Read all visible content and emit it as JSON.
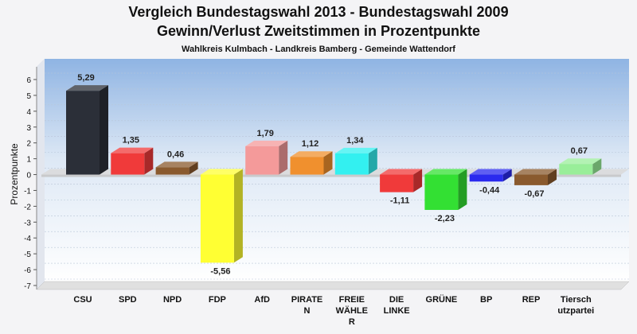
{
  "chart_data": {
    "type": "bar",
    "title": "Vergleich Bundestagswahl 2013 - Bundestagswahl 2009",
    "title2": "Gewinn/Verlust Zweitstimmen in Prozentpunkte",
    "subtitle": "Wahlkreis Kulmbach - Landkreis Bamberg - Gemeinde Wattendorf",
    "ylabel": "Prozentpunkte",
    "xlabel": "",
    "ylim": [
      -7,
      6
    ],
    "yticks": [
      6,
      5,
      4,
      3,
      2,
      1,
      0,
      -1,
      -2,
      -3,
      -4,
      -5,
      -6,
      -7
    ],
    "grid": true,
    "categories": [
      "CSU",
      "SPD",
      "NPD",
      "FDP",
      "AfD",
      "PIRATE N",
      "FREIE WÄHLE R",
      "DIE LINKE",
      "GRÜNE",
      "BP",
      "REP",
      "Tiersch utzpartei"
    ],
    "category_lines": [
      [
        "CSU"
      ],
      [
        "SPD"
      ],
      [
        "NPD"
      ],
      [
        "FDP"
      ],
      [
        "AfD"
      ],
      [
        "PIRATE",
        "N"
      ],
      [
        "FREIE",
        "WÄHLE",
        "R"
      ],
      [
        "DIE",
        "LINKE"
      ],
      [
        "GRÜNE"
      ],
      [
        "BP"
      ],
      [
        "REP"
      ],
      [
        "Tiersch",
        "utzpartei"
      ]
    ],
    "values": [
      5.29,
      1.35,
      0.46,
      -5.56,
      1.79,
      1.12,
      1.34,
      -1.11,
      -2.23,
      -0.44,
      -0.67,
      0.67
    ],
    "value_labels": [
      "5,29",
      "1,35",
      "0,46",
      "-5,56",
      "1,79",
      "1,12",
      "1,34",
      "-1,11",
      "-2,23",
      "-0,44",
      "-0,67",
      "0,67"
    ],
    "colors": [
      "#2b2f38",
      "#f03a3a",
      "#8a5a2e",
      "#ffff33",
      "#f49a9a",
      "#f0902e",
      "#33f0f0",
      "#f03a3a",
      "#33e033",
      "#2a2aee",
      "#8a5a2e",
      "#99ee99"
    ]
  }
}
